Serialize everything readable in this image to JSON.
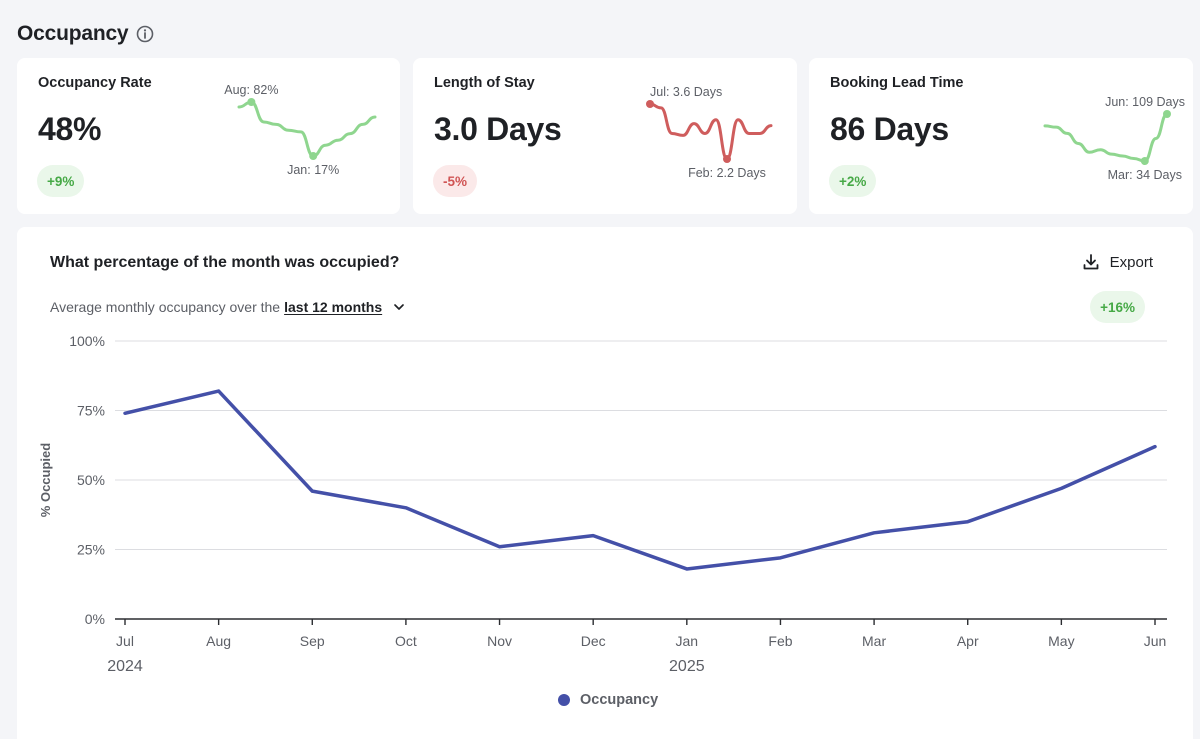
{
  "header": {
    "title": "Occupancy",
    "info_icon": "info-circle-icon"
  },
  "kpis": [
    {
      "label": "Occupancy Rate",
      "value": "48%",
      "delta": "+9%",
      "trend": "up",
      "color": "#8fd68f",
      "spark": [
        76,
        82,
        58,
        55,
        48,
        46,
        17,
        30,
        36,
        44,
        55,
        64
      ],
      "max_label": "Aug: 82%",
      "min_label": "Jan: 17%",
      "max_index": 1,
      "min_index": 6
    },
    {
      "label": "Length of Stay",
      "value": "3.0 Days",
      "delta": "-5%",
      "trend": "down",
      "color": "#cf5d5d",
      "spark": [
        3.6,
        3.5,
        2.85,
        2.8,
        3.1,
        2.85,
        3.2,
        2.2,
        3.2,
        2.85,
        2.85,
        3.05
      ],
      "max_label": "Jul: 3.6 Days",
      "min_label": "Feb: 2.2 Days",
      "max_index": 0,
      "min_index": 7
    },
    {
      "label": "Booking Lead Time",
      "value": "86 Days",
      "delta": "+2%",
      "trend": "up",
      "color": "#8fd68f",
      "spark": [
        90,
        88,
        78,
        62,
        48,
        52,
        45,
        42,
        38,
        34,
        70,
        109
      ],
      "max_label": "Jun: 109 Days",
      "min_label": "Mar: 34 Days",
      "max_index": 11,
      "min_index": 9
    }
  ],
  "chart": {
    "title": "What percentage of the month was occupied?",
    "export_label": "Export",
    "subtitle_prefix": "Average monthly occupancy over the",
    "range_label": "last 12 months",
    "delta": "+16%",
    "legend_label": "Occupancy"
  },
  "chart_data": {
    "type": "line",
    "categories": [
      "Jul",
      "Aug",
      "Sep",
      "Oct",
      "Nov",
      "Dec",
      "Jan",
      "Feb",
      "Mar",
      "Apr",
      "May",
      "Jun"
    ],
    "year_labels": [
      {
        "index": 0,
        "label": "2024"
      },
      {
        "index": 6,
        "label": "2025"
      }
    ],
    "series": [
      {
        "name": "Occupancy",
        "color": "#4450a8",
        "values": [
          74,
          82,
          46,
          40,
          26,
          30,
          18,
          22,
          31,
          35,
          47,
          62
        ]
      }
    ],
    "ylabel": "% Occupied",
    "yticks": [
      0,
      25,
      50,
      75,
      100
    ],
    "ytick_labels": [
      "0%",
      "25%",
      "50%",
      "75%",
      "100%"
    ],
    "ylim": [
      0,
      100
    ],
    "grid": true,
    "legend_position": "bottom"
  }
}
